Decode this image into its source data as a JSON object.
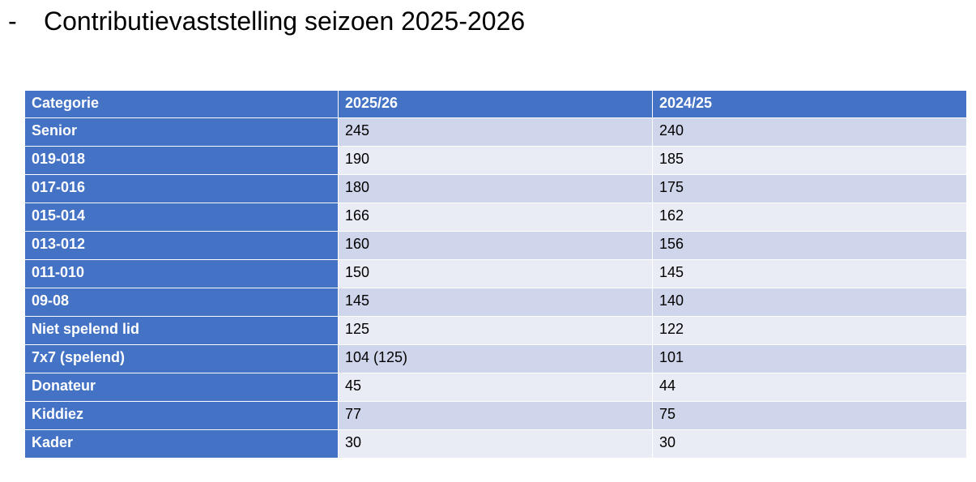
{
  "title": {
    "bullet": "-",
    "text": "Contributievaststelling seizoen 2025-2026"
  },
  "colors": {
    "header_bg": "#4472c4",
    "row_band_1": "#cfd5ea",
    "row_band_2": "#e9ebf5"
  },
  "table": {
    "headers": [
      "Categorie",
      "2025/26",
      "2024/25"
    ],
    "rows": [
      {
        "categorie": "Senior",
        "y2025": "245",
        "y2024": "240"
      },
      {
        "categorie": "019-018",
        "y2025": "190",
        "y2024": "185"
      },
      {
        "categorie": "017-016",
        "y2025": "180",
        "y2024": "175"
      },
      {
        "categorie": "015-014",
        "y2025": "166",
        "y2024": "162"
      },
      {
        "categorie": "013-012",
        "y2025": "160",
        "y2024": "156"
      },
      {
        "categorie": "011-010",
        "y2025": "150",
        "y2024": "145"
      },
      {
        "categorie": "09-08",
        "y2025": "145",
        "y2024": "140"
      },
      {
        "categorie": "Niet spelend lid",
        "y2025": "125",
        "y2024": "122"
      },
      {
        "categorie": "7x7 (spelend)",
        "y2025": "104 (125)",
        "y2024": "101"
      },
      {
        "categorie": "Donateur",
        "y2025": "45",
        "y2024": "44"
      },
      {
        "categorie": "Kiddiez",
        "y2025": "77",
        "y2024": "75"
      },
      {
        "categorie": "Kader",
        "y2025": "30",
        "y2024": "30"
      }
    ]
  }
}
